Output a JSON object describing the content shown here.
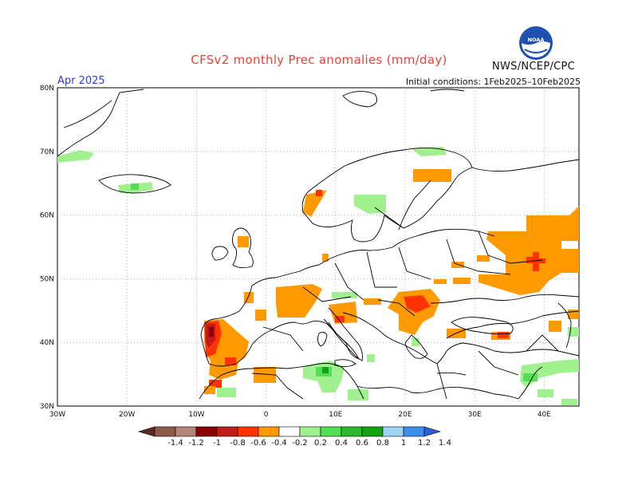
{
  "header": {
    "title": "CFSv2 monthly Prec anomalies (mm/day)",
    "month": "Apr 2025",
    "initial_conditions": "Initial conditions: 1Feb2025–10Feb2025",
    "agency": "NWS/NCEP/CPC",
    "logo_text": "NOAA"
  },
  "map": {
    "lon_range": [
      -30,
      45
    ],
    "lat_range": [
      30,
      80
    ],
    "x_ticks": [
      "30W",
      "20W",
      "10W",
      "0",
      "10E",
      "20E",
      "30E",
      "40E"
    ],
    "y_ticks": [
      "30N",
      "40N",
      "50N",
      "60N",
      "70N",
      "80N"
    ],
    "grid": true
  },
  "colorbar": {
    "labels": [
      "-1.4",
      "-1.2",
      "-1",
      "-0.8",
      "-0.6",
      "-0.4",
      "-0.2",
      "0.2",
      "0.4",
      "0.6",
      "0.8",
      "1",
      "1.2",
      "1.4"
    ],
    "colors": [
      "#5c2a1a",
      "#8a5a4a",
      "#b3847a",
      "#8b0000",
      "#c41a1a",
      "#ff3300",
      "#ff9900",
      "#ffffff",
      "#a0f090",
      "#55dd55",
      "#2fb82f",
      "#13a013",
      "#9fd3f5",
      "#3d8ee8",
      "#2a5fd6"
    ]
  }
}
